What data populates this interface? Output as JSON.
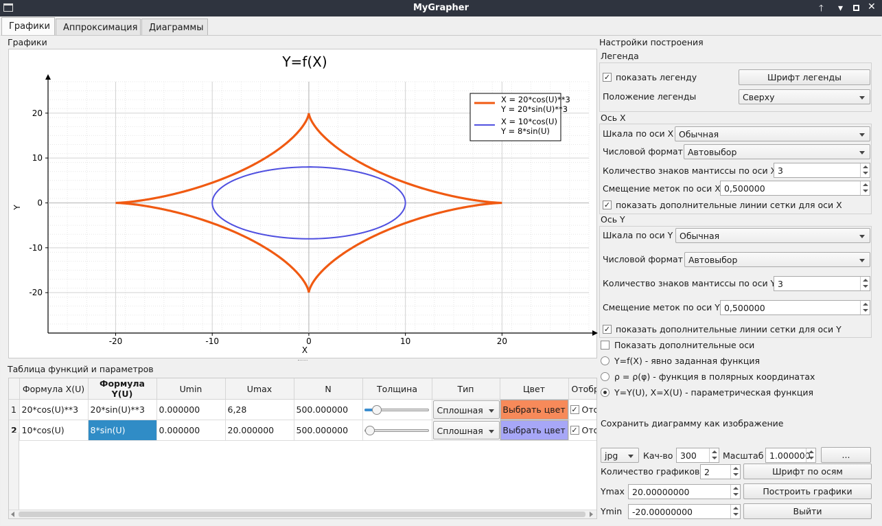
{
  "window": {
    "title": "MyGrapher"
  },
  "tabs": [
    "Графики",
    "Аппроксимация",
    "Диаграммы"
  ],
  "plot_section_label": "Графики",
  "chart_data": {
    "type": "line",
    "title": "Y=f(X)",
    "xlabel": "X",
    "ylabel": "Y",
    "xlim": [
      -27,
      29
    ],
    "ylim": [
      -29,
      27
    ],
    "xticks": [
      -20,
      -10,
      0,
      10,
      20
    ],
    "yticks": [
      20,
      10,
      0,
      -10,
      -20
    ],
    "grid": true,
    "legend_position": "top-right",
    "series": [
      {
        "name": "X = 20*cos(U)**3\nY = 20*sin(U)**3",
        "legend_lines": [
          "X = 20*cos(U)**3",
          "Y = 20*sin(U)**3"
        ],
        "parametric": {
          "x": "20*cos(U)**3",
          "y": "20*sin(U)**3",
          "umin": 0,
          "umax": 6.28
        },
        "color": "#f05a12"
      },
      {
        "name": "X = 10*cos(U)\nY = 8*sin(U)",
        "legend_lines": [
          "X = 10*cos(U)",
          "Y = 8*sin(U)"
        ],
        "parametric": {
          "x": "10*cos(U)",
          "y": "8*sin(U)",
          "umin": 0,
          "umax": 20
        },
        "color": "#5050e0"
      }
    ]
  },
  "table": {
    "label": "Таблица функций и параметров",
    "headers": [
      "Формула X(U)",
      "Формула Y(U)",
      "Umin",
      "Umax",
      "N",
      "Толщина",
      "Тип",
      "Цвет",
      "Отобр"
    ],
    "rows": [
      {
        "num": "1",
        "fx": "20*cos(U)**3",
        "fy": "20*sin(U)**3",
        "umin": "0.000000",
        "umax": "6,28",
        "n": "500.000000",
        "slider": 0.12,
        "type": "Сплошная",
        "color_label": "Выбрать цвет",
        "color": "#f78a5a",
        "show": "Ото"
      },
      {
        "num": "2",
        "fx": "10*cos(U)",
        "fy": "8*sin(U)",
        "umin": "0.000000",
        "umax": "20.000000",
        "n": "500.000000",
        "slider": 0.02,
        "type": "Сплошная",
        "color_label": "Выбрать цвет",
        "color": "#a7a7f7",
        "show": "Ото"
      }
    ]
  },
  "settings": {
    "title": "Настройки построения",
    "legend": {
      "group": "Легенда",
      "show_label": "показать легенду",
      "font_button": "Шрифт легенды",
      "position_label": "Положение легенды",
      "position_value": "Сверху"
    },
    "x_axis": {
      "group": "Ось X",
      "scale_label": "Шкала по оси X",
      "scale_value": "Обычная",
      "format_label": "Числовой формат",
      "format_value": "Автовыбор",
      "mantissa_label": "Количество знаков мантиссы по оси X",
      "mantissa_value": "3",
      "offset_label": "Смещение меток по оси X",
      "offset_value": "0,500000",
      "grid_label": "показать дополнительные линии сетки для оси X"
    },
    "y_axis": {
      "group": "Ось Y",
      "scale_label": "Шкала по оси Y",
      "scale_value": "Обычная",
      "format_label": "Числовой формат",
      "format_value": "Автовыбор",
      "mantissa_label": "Количество знаков мантиссы по оси Y",
      "mantissa_value": "3",
      "offset_label": "Смещение меток по оси Y",
      "offset_value": "0,500000",
      "grid_label": "показать дополнительные линии сетки для оси Y"
    },
    "extra_axes_label": "Показать дополнительные оси",
    "radio_explicit": "Y=f(X) - явно заданная функция",
    "radio_polar": "ρ = ρ(φ) - функция в полярных координатах",
    "radio_param": "Y=Y(U), X=X(U) - параметрическая функция",
    "save_label": "Сохранить диаграмму как изображение",
    "format_value": "jpg",
    "quality_label": "Кач-во",
    "quality_value": "300",
    "scale_label": "Масштаб",
    "scale_value": "1.000000",
    "dots_button": "...",
    "count_label": "Количество графиков",
    "count_value": "2",
    "axis_font_button": "Шрифт по осям",
    "ymax_label": "Ymax",
    "ymax_value": "20.00000000",
    "build_button": "Построить графики",
    "ymin_label": "Ymin",
    "ymin_value": "-20.00000000",
    "exit_button": "Выйти"
  }
}
